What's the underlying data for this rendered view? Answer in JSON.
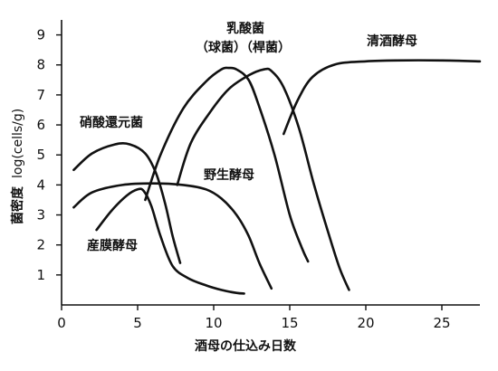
{
  "chart_data": {
    "type": "line",
    "xlabel": "酒母の仕込み日数",
    "ylabel_main": "菌密度",
    "ylabel_unit": "log(cells/g)",
    "xlim": [
      0,
      27.5
    ],
    "ylim": [
      0,
      9.5
    ],
    "x_ticks": [
      0,
      5,
      10,
      15,
      20,
      25
    ],
    "y_ticks": [
      1,
      2,
      3,
      4,
      5,
      6,
      7,
      8,
      9
    ],
    "grid": false,
    "series": [
      {
        "name": "硝酸還元菌",
        "x": [
          0.8,
          2,
          3.5,
          4.5,
          5.5,
          6.2,
          6.8,
          7.3,
          7.8
        ],
        "y": [
          4.5,
          5.05,
          5.35,
          5.35,
          5.05,
          4.4,
          3.4,
          2.3,
          1.4
        ]
      },
      {
        "name": "野生酵母",
        "x": [
          0.8,
          2,
          4,
          6,
          8,
          9.5,
          10.5,
          11.5,
          12.3,
          13,
          13.8
        ],
        "y": [
          3.25,
          3.75,
          4.0,
          4.05,
          4.0,
          3.85,
          3.55,
          3.0,
          2.3,
          1.4,
          0.55
        ]
      },
      {
        "name": "産膜酵母",
        "x": [
          2.3,
          3.3,
          4.3,
          5.0,
          5.4,
          5.9,
          6.5,
          7.3,
          8.3,
          9.5,
          10.5,
          11.5,
          12
        ],
        "y": [
          2.5,
          3.15,
          3.65,
          3.85,
          3.8,
          3.3,
          2.3,
          1.3,
          0.9,
          0.65,
          0.5,
          0.4,
          0.38
        ]
      },
      {
        "name": "乳酸菌（球菌）",
        "x": [
          5.5,
          6.5,
          8,
          9.5,
          10.5,
          11,
          11.5,
          12.3,
          13,
          14,
          15,
          15.8,
          16.2
        ],
        "y": [
          3.5,
          5.0,
          6.55,
          7.45,
          7.85,
          7.9,
          7.85,
          7.5,
          6.6,
          5.0,
          3.0,
          1.9,
          1.45
        ]
      },
      {
        "name": "乳酸菌（桿菌）",
        "x": [
          7.6,
          8.5,
          9.8,
          11,
          12.3,
          13.3,
          13.8,
          14.6,
          15.6,
          16.6,
          17.6,
          18.3,
          18.9
        ],
        "y": [
          4.0,
          5.4,
          6.45,
          7.2,
          7.65,
          7.85,
          7.8,
          7.25,
          5.9,
          4.0,
          2.3,
          1.2,
          0.5
        ]
      },
      {
        "name": "清酒酵母",
        "x": [
          14.6,
          15.5,
          16.5,
          18,
          20,
          22,
          25,
          27.5
        ],
        "y": [
          5.7,
          6.8,
          7.6,
          8.02,
          8.12,
          8.15,
          8.15,
          8.12
        ]
      }
    ],
    "annotations": [
      {
        "id": "nitrate",
        "text": "硝酸還元菌"
      },
      {
        "id": "wild",
        "text": "野生酵母"
      },
      {
        "id": "film",
        "text": "産膜酵母"
      },
      {
        "id": "lactic_title",
        "text": "乳酸菌"
      },
      {
        "id": "lactic_sub",
        "text": "（球菌）（桿菌）"
      },
      {
        "id": "sake",
        "text": "清酒酵母"
      }
    ]
  }
}
